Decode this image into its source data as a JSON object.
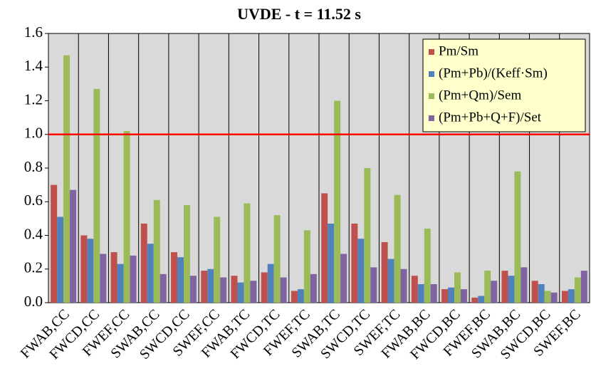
{
  "chart_data": {
    "type": "bar",
    "title": "UVDE - t = 11.52 s",
    "categories": [
      "FWAB,CC",
      "FWCD,CC",
      "FWEF,CC",
      "SWAB,CC",
      "SWCD,CC",
      "SWEF,CC",
      "FWAB,TC",
      "FWCD,TC",
      "FWEF,TC",
      "SWAB,TC",
      "SWCD,TC",
      "SWEF,TC",
      "FWAB,BC",
      "FWCD,BC",
      "FWEF,BC",
      "SWAB,BC",
      "SWCD,BC",
      "SWEF,BC"
    ],
    "series": [
      {
        "name": "Pm/Sm",
        "color": "#c0504d",
        "values": [
          0.7,
          0.4,
          0.3,
          0.47,
          0.3,
          0.19,
          0.16,
          0.18,
          0.07,
          0.65,
          0.47,
          0.36,
          0.16,
          0.08,
          0.03,
          0.19,
          0.13,
          0.07
        ]
      },
      {
        "name": "(Pm+Pb)/(Keff·Sm)",
        "color": "#4f81bd",
        "values": [
          0.51,
          0.38,
          0.23,
          0.35,
          0.27,
          0.2,
          0.12,
          0.23,
          0.08,
          0.47,
          0.38,
          0.26,
          0.11,
          0.09,
          0.04,
          0.16,
          0.11,
          0.08
        ]
      },
      {
        "name": "(Pm+Qm)/Sem",
        "color": "#9bbb59",
        "values": [
          1.47,
          1.27,
          1.02,
          0.61,
          0.58,
          0.51,
          0.59,
          0.52,
          0.43,
          1.2,
          0.8,
          0.64,
          0.44,
          0.18,
          0.19,
          0.78,
          0.07,
          0.15
        ]
      },
      {
        "name": "(Pm+Pb+Q+F)/Set",
        "color": "#8064a2",
        "values": [
          0.67,
          0.29,
          0.28,
          0.17,
          0.16,
          0.15,
          0.13,
          0.15,
          0.17,
          0.29,
          0.21,
          0.2,
          0.11,
          0.08,
          0.13,
          0.21,
          0.06,
          0.19
        ]
      }
    ],
    "ylim": [
      0,
      1.6
    ],
    "yticks": [
      {
        "value": 0,
        "label": "0.0"
      },
      0.2,
      0.4,
      0.6,
      0.8,
      {
        "value": 1,
        "label": "1.0"
      },
      1.2,
      1.4,
      1.6
    ],
    "reference_line": {
      "value": 1.0,
      "color": "#ff0000"
    },
    "legend": "upper right"
  }
}
